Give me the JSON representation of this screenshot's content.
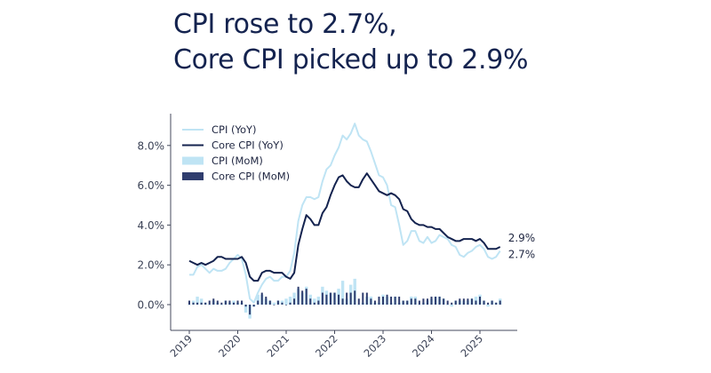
{
  "headline": {
    "line1": "CPI rose to 2.7%,",
    "line2": "Core CPI picked up to 2.9%"
  },
  "colors": {
    "cpi_yoy": "#bfe4f4",
    "core_yoy": "#14234f",
    "cpi_mom": "#bfe4f4",
    "core_mom": "#2f3d6e",
    "axis": "#444a5c"
  },
  "chart_data": {
    "type": "line",
    "title": "",
    "xlabel": "",
    "ylabel": "",
    "ylim": [
      -1.1,
      9.2
    ],
    "grid": false,
    "legend": "top-left",
    "x_tick_labels": [
      "2019",
      "2020",
      "2021",
      "2022",
      "2023",
      "2024",
      "2025"
    ],
    "y_tick_labels": [
      {
        "value": 0,
        "label": "0.0%"
      },
      {
        "value": 2,
        "label": "2.0%"
      },
      {
        "value": 4,
        "label": "4.0%"
      },
      {
        "value": 6,
        "label": "6.0%"
      },
      {
        "value": 8,
        "label": "8.0%"
      }
    ],
    "end_labels": [
      {
        "series": "Core CPI (YoY)",
        "value": 2.9,
        "label": "2.9%"
      },
      {
        "series": "CPI (YoY)",
        "value": 2.7,
        "label": "2.7%"
      }
    ],
    "series": [
      {
        "name": "CPI (YoY)",
        "kind": "line",
        "start": "2019-01",
        "values": [
          1.5,
          1.5,
          1.9,
          2.0,
          1.8,
          1.6,
          1.8,
          1.7,
          1.7,
          1.8,
          2.1,
          2.3,
          2.5,
          2.3,
          1.5,
          0.3,
          0.1,
          0.6,
          1.0,
          1.3,
          1.4,
          1.2,
          1.2,
          1.4,
          1.4,
          1.7,
          2.6,
          4.2,
          5.0,
          5.4,
          5.4,
          5.3,
          5.4,
          6.2,
          6.8,
          7.0,
          7.5,
          7.9,
          8.5,
          8.3,
          8.6,
          9.1,
          8.5,
          8.3,
          8.2,
          7.7,
          7.1,
          6.5,
          6.4,
          6.0,
          5.0,
          4.9,
          4.0,
          3.0,
          3.2,
          3.7,
          3.7,
          3.2,
          3.1,
          3.4,
          3.1,
          3.2,
          3.5,
          3.4,
          3.3,
          3.0,
          2.9,
          2.5,
          2.4,
          2.6,
          2.7,
          2.9,
          3.0,
          2.8,
          2.4,
          2.3,
          2.4,
          2.7
        ]
      },
      {
        "name": "Core CPI (YoY)",
        "kind": "line",
        "start": "2019-01",
        "values": [
          2.2,
          2.1,
          2.0,
          2.1,
          2.0,
          2.1,
          2.2,
          2.4,
          2.4,
          2.3,
          2.3,
          2.3,
          2.3,
          2.4,
          2.1,
          1.4,
          1.2,
          1.2,
          1.6,
          1.7,
          1.7,
          1.6,
          1.6,
          1.6,
          1.4,
          1.3,
          1.6,
          3.0,
          3.8,
          4.5,
          4.3,
          4.0,
          4.0,
          4.6,
          4.9,
          5.5,
          6.0,
          6.4,
          6.5,
          6.2,
          6.0,
          5.9,
          5.9,
          6.3,
          6.6,
          6.3,
          6.0,
          5.7,
          5.6,
          5.5,
          5.6,
          5.5,
          5.3,
          4.8,
          4.7,
          4.3,
          4.1,
          4.0,
          4.0,
          3.9,
          3.9,
          3.8,
          3.8,
          3.6,
          3.4,
          3.3,
          3.2,
          3.2,
          3.3,
          3.3,
          3.3,
          3.2,
          3.3,
          3.1,
          2.8,
          2.8,
          2.8,
          2.9
        ]
      },
      {
        "name": "CPI (MoM)",
        "kind": "bar",
        "start": "2019-01",
        "values": [
          0.0,
          0.2,
          0.4,
          0.3,
          0.1,
          0.0,
          0.2,
          0.1,
          0.0,
          0.2,
          0.1,
          0.2,
          0.1,
          0.1,
          -0.4,
          -0.7,
          -0.1,
          0.5,
          0.5,
          0.3,
          0.2,
          0.1,
          0.2,
          0.2,
          0.3,
          0.4,
          0.6,
          0.8,
          0.6,
          0.9,
          0.5,
          0.3,
          0.4,
          0.9,
          0.7,
          0.6,
          0.6,
          0.8,
          1.2,
          0.3,
          1.0,
          1.3,
          0.0,
          0.1,
          0.4,
          0.4,
          0.1,
          0.1,
          0.5,
          0.4,
          0.1,
          0.4,
          0.1,
          0.2,
          0.2,
          0.4,
          0.4,
          0.0,
          0.1,
          0.2,
          0.3,
          0.4,
          0.4,
          0.3,
          0.0,
          -0.1,
          0.2,
          0.2,
          0.2,
          0.2,
          0.3,
          0.4,
          0.5,
          0.2,
          -0.1,
          0.2,
          0.1,
          0.3
        ]
      },
      {
        "name": "Core CPI (MoM)",
        "kind": "bar",
        "start": "2019-01",
        "values": [
          0.2,
          0.1,
          0.1,
          0.1,
          0.1,
          0.2,
          0.3,
          0.2,
          0.1,
          0.2,
          0.2,
          0.1,
          0.2,
          0.2,
          -0.1,
          -0.5,
          -0.1,
          0.2,
          0.6,
          0.4,
          0.2,
          0.0,
          0.2,
          0.1,
          0.0,
          0.1,
          0.3,
          0.9,
          0.7,
          0.8,
          0.3,
          0.1,
          0.2,
          0.6,
          0.5,
          0.6,
          0.6,
          0.5,
          0.3,
          0.6,
          0.6,
          0.7,
          0.3,
          0.6,
          0.6,
          0.3,
          0.2,
          0.4,
          0.4,
          0.5,
          0.4,
          0.4,
          0.4,
          0.2,
          0.2,
          0.3,
          0.3,
          0.2,
          0.3,
          0.3,
          0.4,
          0.4,
          0.4,
          0.3,
          0.2,
          0.1,
          0.2,
          0.3,
          0.3,
          0.3,
          0.3,
          0.2,
          0.4,
          0.2,
          0.1,
          0.2,
          0.1,
          0.2
        ]
      }
    ]
  }
}
